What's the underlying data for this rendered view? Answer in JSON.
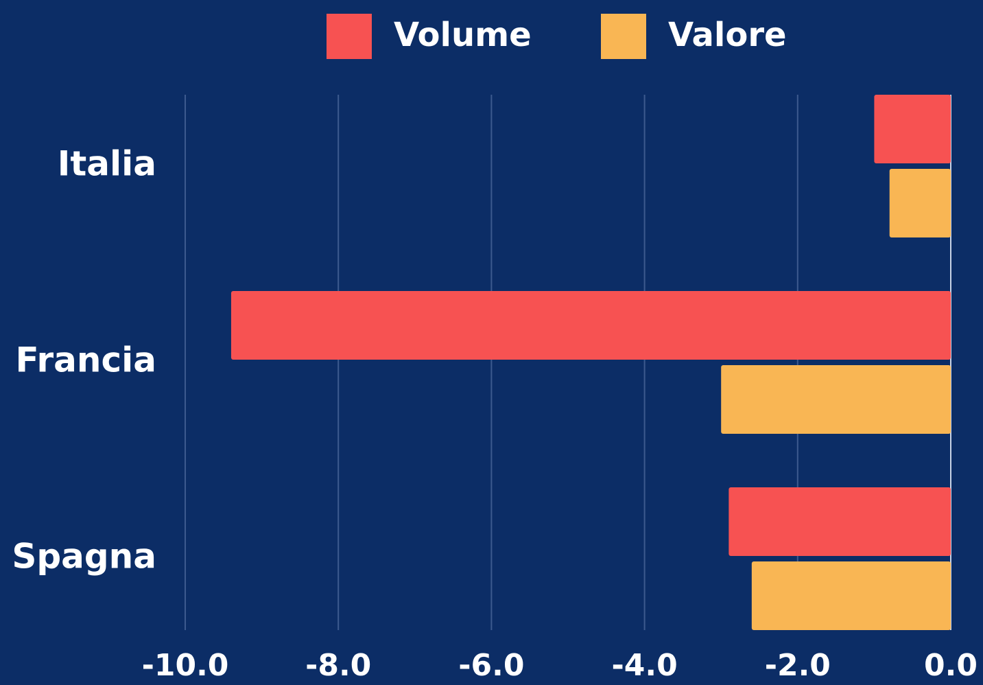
{
  "chart_data": {
    "type": "bar",
    "orientation": "horizontal",
    "categories": [
      "Italia",
      "Francia",
      "Spagna"
    ],
    "series": [
      {
        "name": "Volume",
        "color": "#f75252",
        "values": [
          -1.0,
          -9.4,
          -2.9
        ]
      },
      {
        "name": "Valore",
        "color": "#f9b654",
        "values": [
          -0.8,
          -3.0,
          -2.6
        ]
      }
    ],
    "xlim": [
      -10,
      0
    ],
    "xticks": [
      {
        "value": -10,
        "label": "-10.0"
      },
      {
        "value": -8,
        "label": "-8.0"
      },
      {
        "value": -6,
        "label": "-6.0"
      },
      {
        "value": -4,
        "label": "-4.0"
      },
      {
        "value": -2,
        "label": "-2.0"
      },
      {
        "value": 0,
        "label": "0.0"
      }
    ],
    "grid": true,
    "legend": "top"
  }
}
